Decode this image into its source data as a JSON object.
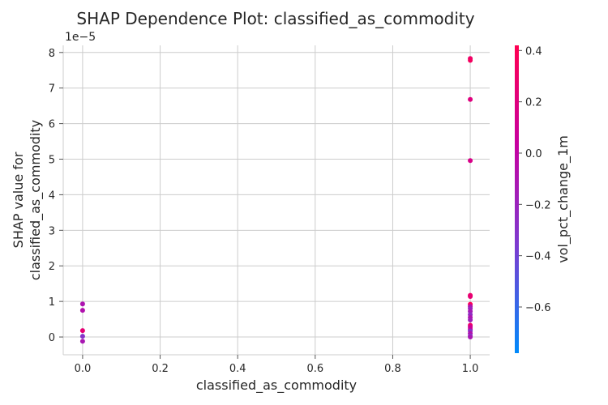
{
  "chart_data": {
    "type": "scatter",
    "title": "SHAP Dependence Plot: classified_as_commodity",
    "xlabel": "classified_as_commodity",
    "ylabel_line1": "SHAP value for",
    "ylabel_line2": "classified_as_commodity",
    "y_offset_label": "1e−5",
    "xlim": [
      -0.05,
      1.05
    ],
    "ylim": [
      -0.5,
      8.2
    ],
    "x_ticks": [
      0.0,
      0.2,
      0.4,
      0.6,
      0.8,
      1.0
    ],
    "x_tick_labels": [
      "0.0",
      "0.2",
      "0.4",
      "0.6",
      "0.8",
      "1.0"
    ],
    "y_ticks": [
      0,
      1,
      2,
      3,
      4,
      5,
      6,
      7,
      8
    ],
    "y_tick_labels": [
      "0",
      "1",
      "2",
      "3",
      "4",
      "5",
      "6",
      "7",
      "8"
    ],
    "grid": true,
    "colorbar": {
      "label": "vol_pct_change_1m",
      "range": [
        -0.78,
        0.42
      ],
      "ticks": [
        -0.6,
        -0.4,
        -0.2,
        0.0,
        0.2,
        0.4
      ],
      "tick_labels": [
        "−0.6",
        "−0.4",
        "−0.2",
        "0.0",
        "0.2",
        "0.4"
      ],
      "colors": [
        "#008afb",
        "#7c3bd0",
        "#c7009f",
        "#ff0051"
      ]
    },
    "points": [
      {
        "x": 0.0,
        "y": 0.93,
        "c": -0.1
      },
      {
        "x": 0.0,
        "y": 0.75,
        "c": -0.08
      },
      {
        "x": 0.0,
        "y": 0.18,
        "c": 0.25
      },
      {
        "x": 0.0,
        "y": 0.02,
        "c": -0.3
      },
      {
        "x": 0.0,
        "y": -0.12,
        "c": -0.12
      },
      {
        "x": 1.0,
        "y": 7.83,
        "c": 0.3
      },
      {
        "x": 1.0,
        "y": 7.78,
        "c": 0.35
      },
      {
        "x": 1.0,
        "y": 6.68,
        "c": 0.2
      },
      {
        "x": 1.0,
        "y": 4.96,
        "c": 0.15
      },
      {
        "x": 1.0,
        "y": 1.17,
        "c": 0.3
      },
      {
        "x": 1.0,
        "y": 1.14,
        "c": 0.25
      },
      {
        "x": 1.0,
        "y": 0.92,
        "c": 0.4
      },
      {
        "x": 1.0,
        "y": 0.86,
        "c": -0.05
      },
      {
        "x": 1.0,
        "y": 0.8,
        "c": -0.2
      },
      {
        "x": 1.0,
        "y": 0.72,
        "c": -0.15
      },
      {
        "x": 1.0,
        "y": 0.63,
        "c": -0.25
      },
      {
        "x": 1.0,
        "y": 0.55,
        "c": -0.1
      },
      {
        "x": 1.0,
        "y": 0.48,
        "c": -0.18
      },
      {
        "x": 1.0,
        "y": 0.33,
        "c": 0.3
      },
      {
        "x": 1.0,
        "y": 0.28,
        "c": 0.1
      },
      {
        "x": 1.0,
        "y": 0.22,
        "c": 0.05
      },
      {
        "x": 1.0,
        "y": 0.17,
        "c": -0.3
      },
      {
        "x": 1.0,
        "y": 0.1,
        "c": -0.08
      },
      {
        "x": 1.0,
        "y": 0.03,
        "c": -0.35
      },
      {
        "x": 1.0,
        "y": 0.0,
        "c": -0.12
      }
    ]
  }
}
